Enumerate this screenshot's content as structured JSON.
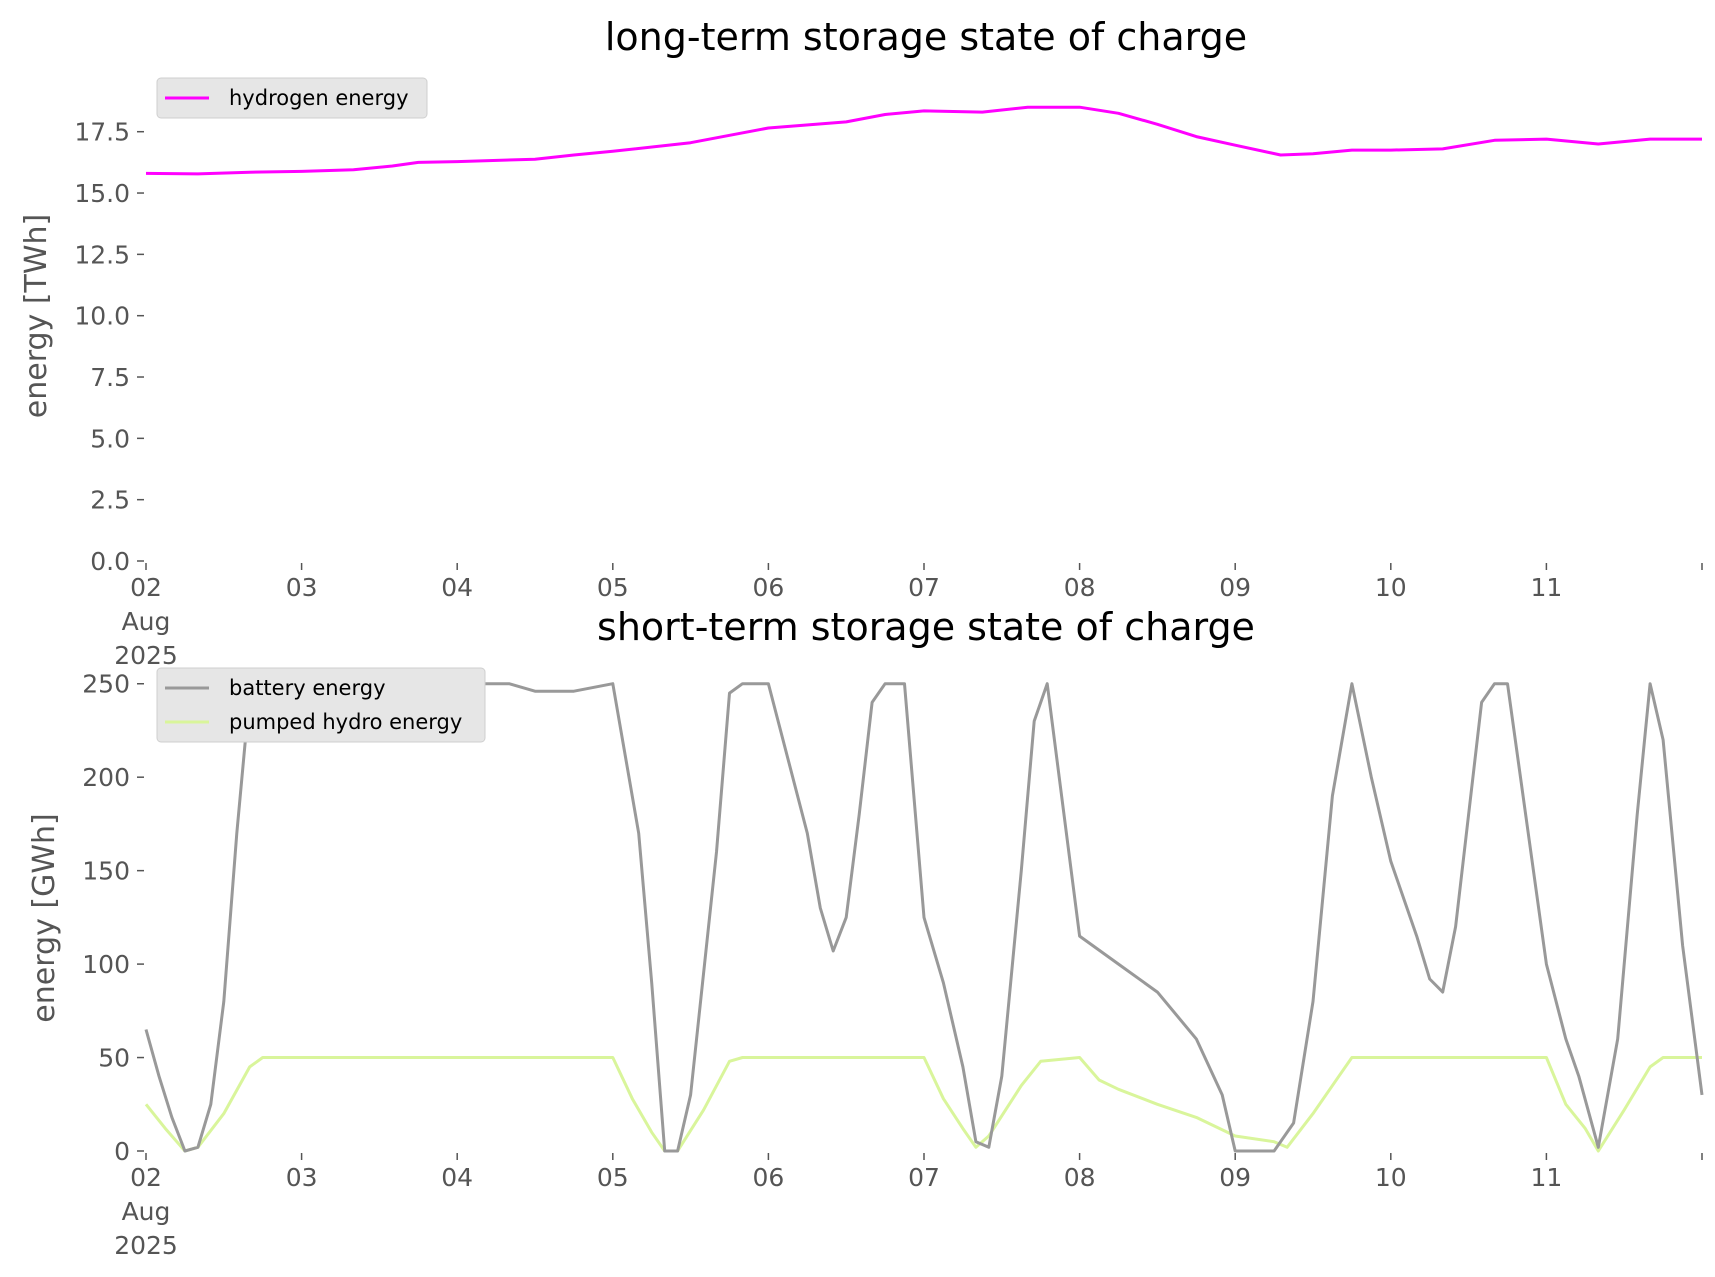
{
  "chart_data": [
    {
      "type": "line",
      "title": "long-term storage state of charge",
      "ylabel": "energy [TWh]",
      "xlabel": "",
      "ylim": [
        0,
        19.2
      ],
      "yticks": [
        "0.0",
        "2.5",
        "5.0",
        "7.5",
        "10.0",
        "12.5",
        "15.0",
        "17.5"
      ],
      "xlim": [
        "2025-08-02",
        "2025-08-12"
      ],
      "xticks": [
        {
          "date": "2025-08-02",
          "lines": [
            "02",
            "Aug",
            "2025"
          ]
        },
        {
          "date": "2025-08-03",
          "lines": [
            "03"
          ]
        },
        {
          "date": "2025-08-04",
          "lines": [
            "04"
          ]
        },
        {
          "date": "2025-08-05",
          "lines": [
            "05"
          ]
        },
        {
          "date": "2025-08-06",
          "lines": [
            "06"
          ]
        },
        {
          "date": "2025-08-07",
          "lines": [
            "07"
          ]
        },
        {
          "date": "2025-08-08",
          "lines": [
            "08"
          ]
        },
        {
          "date": "2025-08-09",
          "lines": [
            "09"
          ]
        },
        {
          "date": "2025-08-10",
          "lines": [
            "10"
          ]
        },
        {
          "date": "2025-08-11",
          "lines": [
            "11"
          ]
        }
      ],
      "grid": false,
      "legend_position": "top-left",
      "series": [
        {
          "name": "hydrogen energy",
          "color": "#ff00ff",
          "points": [
            [
              "2025-08-02 00:00",
              15.8
            ],
            [
              "2025-08-02 08:00",
              15.78
            ],
            [
              "2025-08-02 16:00",
              15.85
            ],
            [
              "2025-08-03 00:00",
              15.88
            ],
            [
              "2025-08-03 08:00",
              15.95
            ],
            [
              "2025-08-03 14:00",
              16.1
            ],
            [
              "2025-08-03 18:00",
              16.25
            ],
            [
              "2025-08-04 00:00",
              16.28
            ],
            [
              "2025-08-04 12:00",
              16.38
            ],
            [
              "2025-08-04 18:00",
              16.55
            ],
            [
              "2025-08-05 00:00",
              16.7
            ],
            [
              "2025-08-05 12:00",
              17.05
            ],
            [
              "2025-08-06 00:00",
              17.65
            ],
            [
              "2025-08-06 12:00",
              17.9
            ],
            [
              "2025-08-06 18:00",
              18.2
            ],
            [
              "2025-08-07 00:00",
              18.35
            ],
            [
              "2025-08-07 09:00",
              18.3
            ],
            [
              "2025-08-07 16:00",
              18.5
            ],
            [
              "2025-08-08 00:00",
              18.5
            ],
            [
              "2025-08-08 06:00",
              18.25
            ],
            [
              "2025-08-08 12:00",
              17.8
            ],
            [
              "2025-08-08 18:00",
              17.3
            ],
            [
              "2025-08-09 00:00",
              16.95
            ],
            [
              "2025-08-09 07:00",
              16.55
            ],
            [
              "2025-08-09 12:00",
              16.6
            ],
            [
              "2025-08-09 18:00",
              16.75
            ],
            [
              "2025-08-10 00:00",
              16.75
            ],
            [
              "2025-08-10 08:00",
              16.8
            ],
            [
              "2025-08-10 16:00",
              17.15
            ],
            [
              "2025-08-11 00:00",
              17.2
            ],
            [
              "2025-08-11 08:00",
              17.0
            ],
            [
              "2025-08-11 16:00",
              17.2
            ],
            [
              "2025-08-12 00:00",
              17.2
            ]
          ]
        }
      ]
    },
    {
      "type": "line",
      "title": "short-term storage state of charge",
      "ylabel": "energy [GWh]",
      "xlabel": "",
      "ylim": [
        0,
        252
      ],
      "yticks": [
        "0",
        "50",
        "100",
        "150",
        "200",
        "250"
      ],
      "xlim": [
        "2025-08-02",
        "2025-08-12"
      ],
      "xticks": [
        {
          "date": "2025-08-02",
          "lines": [
            "02",
            "Aug",
            "2025"
          ]
        },
        {
          "date": "2025-08-03",
          "lines": [
            "03"
          ]
        },
        {
          "date": "2025-08-04",
          "lines": [
            "04"
          ]
        },
        {
          "date": "2025-08-05",
          "lines": [
            "05"
          ]
        },
        {
          "date": "2025-08-06",
          "lines": [
            "06"
          ]
        },
        {
          "date": "2025-08-07",
          "lines": [
            "07"
          ]
        },
        {
          "date": "2025-08-08",
          "lines": [
            "08"
          ]
        },
        {
          "date": "2025-08-09",
          "lines": [
            "09"
          ]
        },
        {
          "date": "2025-08-10",
          "lines": [
            "10"
          ]
        },
        {
          "date": "2025-08-11",
          "lines": [
            "11"
          ]
        }
      ],
      "grid": false,
      "legend_position": "top-left",
      "series": [
        {
          "name": "battery energy",
          "color": "#999999",
          "points": [
            [
              "2025-08-02 00:00",
              65
            ],
            [
              "2025-08-02 02:00",
              40
            ],
            [
              "2025-08-02 04:00",
              18
            ],
            [
              "2025-08-02 06:00",
              0
            ],
            [
              "2025-08-02 08:00",
              2
            ],
            [
              "2025-08-02 10:00",
              25
            ],
            [
              "2025-08-02 12:00",
              80
            ],
            [
              "2025-08-02 14:00",
              170
            ],
            [
              "2025-08-02 16:00",
              245
            ],
            [
              "2025-08-02 18:00",
              250
            ],
            [
              "2025-08-02 21:00",
              238
            ],
            [
              "2025-08-03 00:00",
              232
            ],
            [
              "2025-08-03 06:00",
              237
            ],
            [
              "2025-08-03 12:00",
              240
            ],
            [
              "2025-08-03 18:00",
              243
            ],
            [
              "2025-08-03 20:00",
              247
            ],
            [
              "2025-08-03 22:00",
              245
            ],
            [
              "2025-08-04 00:00",
              250
            ],
            [
              "2025-08-04 08:00",
              250
            ],
            [
              "2025-08-04 12:00",
              246
            ],
            [
              "2025-08-04 18:00",
              246
            ],
            [
              "2025-08-05 00:00",
              250
            ],
            [
              "2025-08-05 04:00",
              170
            ],
            [
              "2025-08-05 06:00",
              90
            ],
            [
              "2025-08-05 08:00",
              0
            ],
            [
              "2025-08-05 10:00",
              0
            ],
            [
              "2025-08-05 12:00",
              30
            ],
            [
              "2025-08-05 16:00",
              160
            ],
            [
              "2025-08-05 18:00",
              245
            ],
            [
              "2025-08-05 20:00",
              250
            ],
            [
              "2025-08-06 00:00",
              250
            ],
            [
              "2025-08-06 06:00",
              170
            ],
            [
              "2025-08-06 08:00",
              130
            ],
            [
              "2025-08-06 10:00",
              107
            ],
            [
              "2025-08-06 12:00",
              125
            ],
            [
              "2025-08-06 14:00",
              180
            ],
            [
              "2025-08-06 16:00",
              240
            ],
            [
              "2025-08-06 18:00",
              250
            ],
            [
              "2025-08-06 21:00",
              250
            ],
            [
              "2025-08-07 00:00",
              125
            ],
            [
              "2025-08-07 03:00",
              90
            ],
            [
              "2025-08-07 06:00",
              45
            ],
            [
              "2025-08-07 08:00",
              5
            ],
            [
              "2025-08-07 10:00",
              2
            ],
            [
              "2025-08-07 12:00",
              40
            ],
            [
              "2025-08-07 15:00",
              150
            ],
            [
              "2025-08-07 17:00",
              230
            ],
            [
              "2025-08-07 19:00",
              250
            ],
            [
              "2025-08-08 00:00",
              115
            ],
            [
              "2025-08-08 06:00",
              100
            ],
            [
              "2025-08-08 12:00",
              85
            ],
            [
              "2025-08-08 18:00",
              60
            ],
            [
              "2025-08-08 22:00",
              30
            ],
            [
              "2025-08-09 00:00",
              0
            ],
            [
              "2025-08-09 06:00",
              0
            ],
            [
              "2025-08-09 09:00",
              15
            ],
            [
              "2025-08-09 12:00",
              80
            ],
            [
              "2025-08-09 15:00",
              190
            ],
            [
              "2025-08-09 18:00",
              250
            ],
            [
              "2025-08-09 21:00",
              200
            ],
            [
              "2025-08-10 00:00",
              155
            ],
            [
              "2025-08-10 04:00",
              115
            ],
            [
              "2025-08-10 06:00",
              92
            ],
            [
              "2025-08-10 08:00",
              85
            ],
            [
              "2025-08-10 10:00",
              120
            ],
            [
              "2025-08-10 12:00",
              180
            ],
            [
              "2025-08-10 14:00",
              240
            ],
            [
              "2025-08-10 16:00",
              250
            ],
            [
              "2025-08-10 18:00",
              250
            ],
            [
              "2025-08-11 00:00",
              100
            ],
            [
              "2025-08-11 03:00",
              60
            ],
            [
              "2025-08-11 05:00",
              40
            ],
            [
              "2025-08-11 08:00",
              2
            ],
            [
              "2025-08-11 11:00",
              60
            ],
            [
              "2025-08-11 14:00",
              180
            ],
            [
              "2025-08-11 16:00",
              250
            ],
            [
              "2025-08-11 18:00",
              220
            ],
            [
              "2025-08-11 21:00",
              110
            ],
            [
              "2025-08-12 00:00",
              30
            ]
          ]
        },
        {
          "name": "pumped hydro energy",
          "color": "#d9f59b",
          "points": [
            [
              "2025-08-02 00:00",
              25
            ],
            [
              "2025-08-02 03:00",
              12
            ],
            [
              "2025-08-02 06:00",
              0
            ],
            [
              "2025-08-02 08:00",
              2
            ],
            [
              "2025-08-02 12:00",
              20
            ],
            [
              "2025-08-02 16:00",
              45
            ],
            [
              "2025-08-02 18:00",
              50
            ],
            [
              "2025-08-05 00:00",
              50
            ],
            [
              "2025-08-05 03:00",
              28
            ],
            [
              "2025-08-05 06:00",
              10
            ],
            [
              "2025-08-05 08:00",
              0
            ],
            [
              "2025-08-05 10:00",
              0
            ],
            [
              "2025-08-05 14:00",
              22
            ],
            [
              "2025-08-05 18:00",
              48
            ],
            [
              "2025-08-05 20:00",
              50
            ],
            [
              "2025-08-07 00:00",
              50
            ],
            [
              "2025-08-07 03:00",
              28
            ],
            [
              "2025-08-07 06:00",
              12
            ],
            [
              "2025-08-07 08:00",
              2
            ],
            [
              "2025-08-07 10:00",
              8
            ],
            [
              "2025-08-07 15:00",
              35
            ],
            [
              "2025-08-07 18:00",
              48
            ],
            [
              "2025-08-08 00:00",
              50
            ],
            [
              "2025-08-08 03:00",
              38
            ],
            [
              "2025-08-08 06:00",
              33
            ],
            [
              "2025-08-08 12:00",
              25
            ],
            [
              "2025-08-08 18:00",
              18
            ],
            [
              "2025-08-09 00:00",
              8
            ],
            [
              "2025-08-09 06:00",
              5
            ],
            [
              "2025-08-09 08:00",
              2
            ],
            [
              "2025-08-09 12:00",
              20
            ],
            [
              "2025-08-09 16:00",
              40
            ],
            [
              "2025-08-09 18:00",
              50
            ],
            [
              "2025-08-11 00:00",
              50
            ],
            [
              "2025-08-11 03:00",
              25
            ],
            [
              "2025-08-11 06:00",
              12
            ],
            [
              "2025-08-11 08:00",
              0
            ],
            [
              "2025-08-11 12:00",
              22
            ],
            [
              "2025-08-11 16:00",
              45
            ],
            [
              "2025-08-11 18:00",
              50
            ],
            [
              "2025-08-12 00:00",
              50
            ]
          ]
        }
      ]
    }
  ]
}
